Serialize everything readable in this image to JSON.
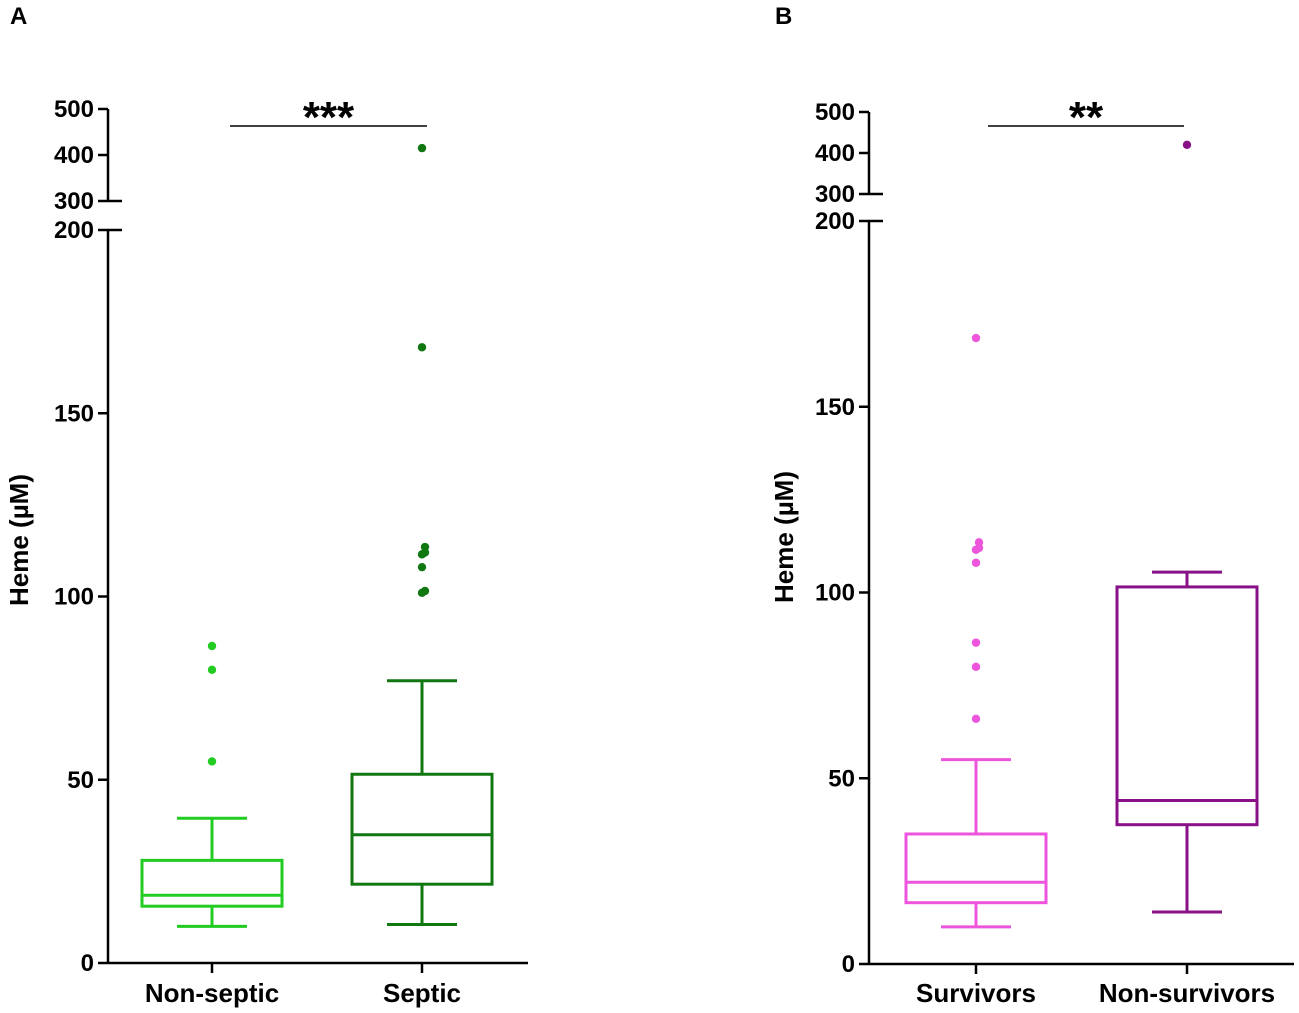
{
  "chart_data": [
    {
      "panel": "A",
      "type": "box",
      "ylabel": "Heme (µM)",
      "y_axis_broken": true,
      "y_segments": {
        "lower": {
          "range": [
            0,
            200
          ],
          "ticks": [
            "0",
            "50",
            "100",
            "150",
            "200"
          ]
        },
        "upper": {
          "range": [
            300,
            500
          ],
          "ticks": [
            "300",
            "400",
            "500"
          ]
        }
      },
      "categories": [
        "Non-septic",
        "Septic"
      ],
      "colors": [
        "#22cc22",
        "#117711"
      ],
      "boxes": [
        {
          "name": "Non-septic",
          "whisker_low": 10,
          "q1": 15.5,
          "median": 18.5,
          "q3": 28,
          "whisker_high": 39.5,
          "outliers": [
            55,
            80,
            86.5
          ]
        },
        {
          "name": "Septic",
          "whisker_low": 10.5,
          "q1": 21.5,
          "median": 35,
          "q3": 51.5,
          "whisker_high": 77,
          "outliers": [
            101,
            101.5,
            108,
            111.5,
            112,
            113.5,
            168,
            415
          ]
        }
      ],
      "significance": "***"
    },
    {
      "panel": "B",
      "type": "box",
      "ylabel": "Heme (µM)",
      "y_axis_broken": true,
      "y_segments": {
        "lower": {
          "range": [
            0,
            200
          ],
          "ticks": [
            "0",
            "50",
            "100",
            "150",
            "200"
          ]
        },
        "upper": {
          "range": [
            300,
            500
          ],
          "ticks": [
            "300",
            "400",
            "500"
          ]
        }
      },
      "categories": [
        "Survivors",
        "Non-survivors"
      ],
      "colors": [
        "#ee55dd",
        "#881188"
      ],
      "boxes": [
        {
          "name": "Survivors",
          "whisker_low": 10,
          "q1": 16.5,
          "median": 22,
          "q3": 35,
          "whisker_high": 55,
          "outliers": [
            66,
            80,
            86.5,
            108,
            111.5,
            112,
            113.5,
            168.5
          ]
        },
        {
          "name": "Non-survivors",
          "whisker_low": 14,
          "q1": 37.5,
          "median": 44,
          "q3": 101.5,
          "whisker_high": 105.5,
          "outliers": [
            420
          ]
        }
      ],
      "significance": "**"
    }
  ]
}
